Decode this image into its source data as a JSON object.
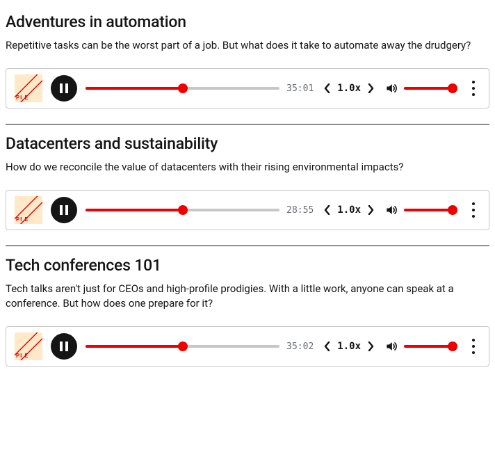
{
  "colors": {
    "accent": "#ee0000",
    "track_bg": "#c7c7c7",
    "text": "#151515",
    "muted": "#6a6e73"
  },
  "episodes": [
    {
      "title": "Adventures in automation",
      "description": "Repetitive tasks can be the worst part of a job. But what does it take to automate away the drudgery?",
      "time": "35:01",
      "speed": "1.0x",
      "progress_pct": 50,
      "volume_pct": 95
    },
    {
      "title": "Datacenters and sustainability",
      "description": "How do we reconcile the value of datacenters with their rising environmental impacts?",
      "time": "28:55",
      "speed": "1.0x",
      "progress_pct": 50,
      "volume_pct": 95
    },
    {
      "title": "Tech conferences 101",
      "description": "Tech talks aren't just for CEOs and high-profile prodigies. With a little work, anyone can speak at a conference. But how does one prepare for it?",
      "time": "35:02",
      "speed": "1.0x",
      "progress_pct": 50,
      "volume_pct": 95
    }
  ]
}
